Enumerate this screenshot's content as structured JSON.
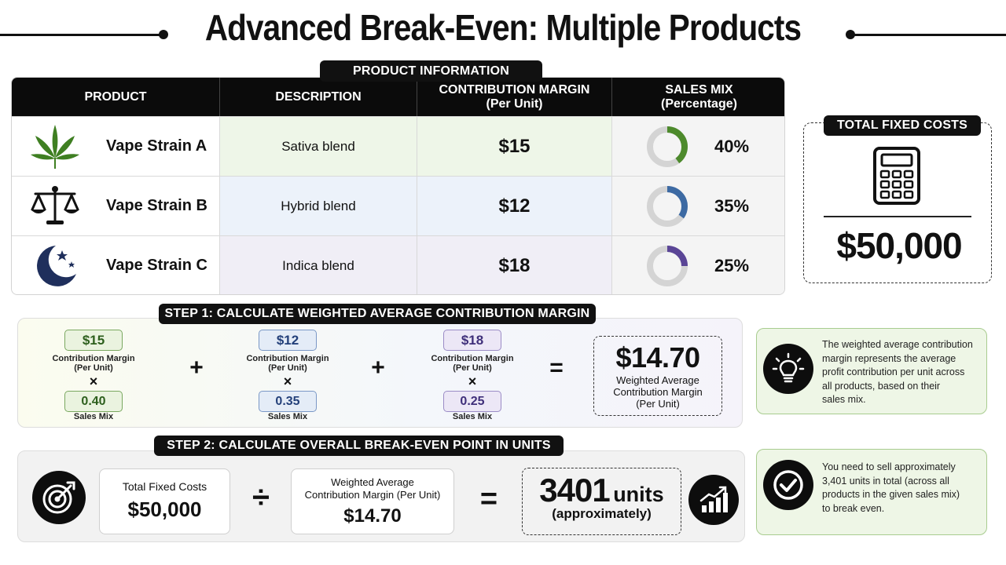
{
  "title": "Advanced Break-Even: Multiple Products",
  "product_table": {
    "tag": "PRODUCT INFORMATION",
    "headers": {
      "product": "PRODUCT",
      "description": "DESCRIPTION",
      "cm_line1": "CONTRIBUTION MARGIN",
      "cm_line2": "(Per Unit)",
      "mix_line1": "SALES MIX",
      "mix_line2": "(Percentage)"
    },
    "rows": [
      {
        "name": "Vape Strain A",
        "description": "Sativa blend",
        "cm": "$15",
        "mix": "40%",
        "mix_value": 0.4,
        "color": "#4d8a2c",
        "icon": "cannabis-leaf-icon"
      },
      {
        "name": "Vape Strain B",
        "description": "Hybrid blend",
        "cm": "$12",
        "mix": "35%",
        "mix_value": 0.35,
        "color": "#3d6aa3",
        "icon": "scales-icon"
      },
      {
        "name": "Vape Strain C",
        "description": "Indica blend",
        "cm": "$18",
        "mix": "25%",
        "mix_value": 0.25,
        "color": "#5a4596",
        "icon": "moon-stars-icon"
      }
    ]
  },
  "fixed_costs": {
    "tag": "TOTAL FIXED COSTS",
    "value": "$50,000",
    "icon": "calculator-icon"
  },
  "step1": {
    "tag": "STEP 1: CALCULATE WEIGHTED AVERAGE CONTRIBUTION MARGIN",
    "terms": [
      {
        "cm": "$15",
        "cm_label1": "Contribution Margin",
        "cm_label2": "(Per Unit)",
        "mix": "0.40",
        "mix_label": "Sales Mix"
      },
      {
        "cm": "$12",
        "cm_label1": "Contribution Margin",
        "cm_label2": "(Per Unit)",
        "mix": "0.35",
        "mix_label": "Sales Mix"
      },
      {
        "cm": "$18",
        "cm_label1": "Contribution Margin",
        "cm_label2": "(Per Unit)",
        "mix": "0.25",
        "mix_label": "Sales Mix"
      }
    ],
    "times": "×",
    "plus": "+",
    "equals": "=",
    "result": "$14.70",
    "result_label1": "Weighted Average",
    "result_label2": "Contribution Margin",
    "result_label3": "(Per Unit)"
  },
  "step2": {
    "tag": "STEP 2: CALCULATE OVERALL BREAK-EVEN POINT IN UNITS",
    "fixed_label": "Total Fixed Costs",
    "fixed_value": "$50,000",
    "divide": "÷",
    "wacm_label1": "Weighted Average",
    "wacm_label2": "Contribution Margin (Per Unit)",
    "wacm_value": "$14.70",
    "equals": "=",
    "result_number": "3401",
    "result_unit": "units",
    "result_note": "(approximately)"
  },
  "notes": [
    {
      "lines": [
        "The weighted average contribution",
        "margin represents the average",
        "profit contribution per unit across",
        "all products, based on their",
        "sales mix."
      ],
      "icon": "lightbulb-icon"
    },
    {
      "lines": [
        "You need to sell approximately",
        "3,401 units in total (across all",
        "products in the given sales mix)",
        "to break even."
      ],
      "icon": "checkmark-icon"
    }
  ]
}
